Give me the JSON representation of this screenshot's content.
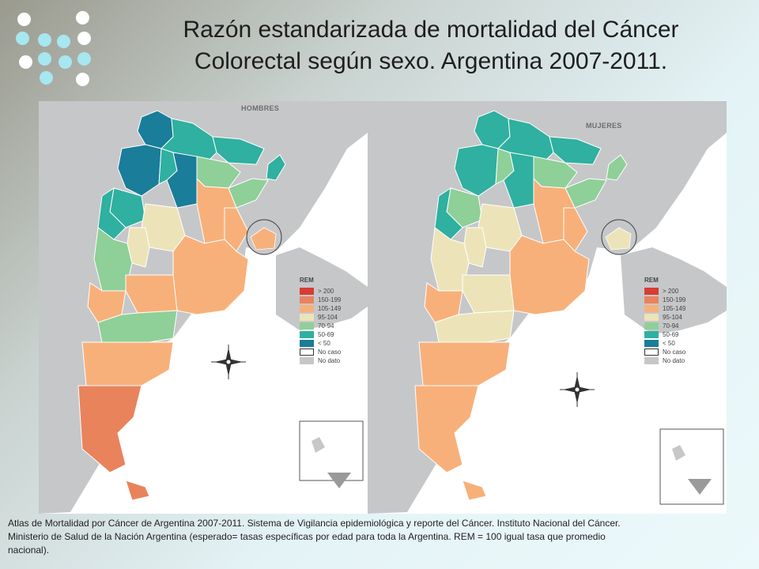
{
  "title": {
    "line1": "Razón estandarizada de mortalidad del Cáncer",
    "line2": "Colorectal según sexo. Argentina 2007-2011."
  },
  "maps": {
    "left_label": "HOMBRES",
    "right_label": "MUJERES"
  },
  "legend": {
    "title": "REM",
    "items": [
      {
        "label": "> 200",
        "color": "#d83c33"
      },
      {
        "label": "150-199",
        "color": "#e8835c"
      },
      {
        "label": "105-149",
        "color": "#f8b07a"
      },
      {
        "label": "95-104",
        "color": "#ece4b8"
      },
      {
        "label": "70-94",
        "color": "#8fcf98"
      },
      {
        "label": "50-69",
        "color": "#2fb0a0"
      },
      {
        "label": "< 50",
        "color": "#1a7d99"
      },
      {
        "label": "No caso",
        "color": "#ffffff"
      },
      {
        "label": "No dato",
        "color": "#c6c7c9"
      }
    ]
  },
  "caption": {
    "line1": "Atlas de Mortalidad por Cáncer de Argentina 2007-2011. Sistema de Vigilancia epidemiológica y reporte del Cáncer. Instituto Nacional del Cáncer.",
    "line2": "Ministerio de Salud de la Nación Argentina (esperado= tasas específicas por edad para toda la Argentina. REM = 100 igual tasa que promedio",
    "line3": "nacional)."
  },
  "icons": [
    "compass-rose-icon",
    "antarctica-inset-icon",
    "decorative-dots-icon"
  ],
  "colors": {
    "background_dark": "#9a9a8e",
    "background_light": "#ecf9fb",
    "land_gray": "#c6c7c9",
    "dot_white": "#ffffff",
    "dot_cyan": "#a6e7f0"
  }
}
